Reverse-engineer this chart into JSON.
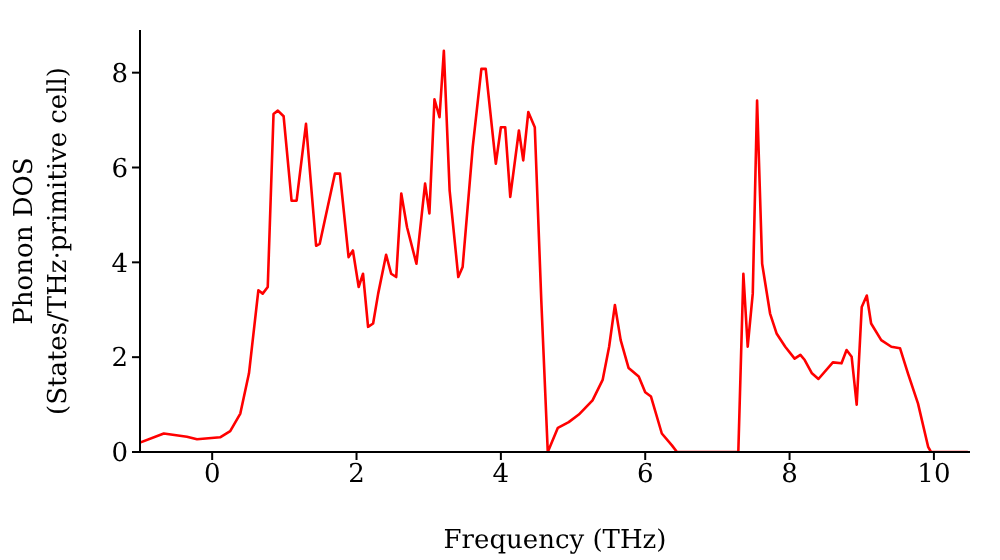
{
  "chart_data": {
    "type": "line",
    "xlabel": "Frequency (THz)",
    "ylabel": "Phonon DOS\n(States/THz·primitive cell)",
    "xlim": [
      -1,
      10.5
    ],
    "ylim": [
      0,
      8.9
    ],
    "xticks": [
      0,
      2,
      4,
      6,
      8,
      10
    ],
    "yticks": [
      0,
      2,
      4,
      6,
      8
    ],
    "grid": false,
    "legend": false,
    "marker": "none",
    "line_style": "solid",
    "series": [
      {
        "color": "#ff0000",
        "x": [
          -1,
          -0.67,
          -0.35,
          -0.21,
          0.11,
          0.25,
          0.39,
          0.51,
          0.64,
          0.7,
          0.77,
          0.85,
          0.91,
          0.99,
          1.1,
          1.17,
          1.3,
          1.44,
          1.49,
          1.7,
          1.77,
          1.89,
          1.95,
          2.03,
          2.09,
          2.16,
          2.23,
          2.3,
          2.41,
          2.48,
          2.55,
          2.62,
          2.7,
          2.83,
          2.95,
          3.01,
          3.08,
          3.15,
          3.21,
          3.29,
          3.41,
          3.47,
          3.61,
          3.73,
          3.79,
          3.93,
          4.0,
          4.06,
          4.13,
          4.25,
          4.31,
          4.38,
          4.47,
          4.56,
          4.65,
          4.79,
          4.94,
          5.08,
          5.27,
          5.41,
          5.5,
          5.58,
          5.66,
          5.77,
          5.91,
          6.0,
          6.08,
          6.23,
          6.37,
          6.44,
          7.29,
          7.36,
          7.42,
          7.49,
          7.55,
          7.62,
          7.73,
          7.82,
          7.94,
          8.07,
          8.15,
          8.21,
          8.31,
          8.4,
          8.6,
          8.72,
          8.79,
          8.86,
          8.93,
          9.0,
          9.07,
          9.13,
          9.27,
          9.41,
          9.53,
          9.64,
          9.78,
          9.92,
          9.96,
          10.47
        ],
        "values": [
          0.2,
          0.39,
          0.32,
          0.27,
          0.31,
          0.44,
          0.81,
          1.66,
          3.41,
          3.34,
          3.48,
          7.13,
          7.2,
          7.08,
          5.3,
          5.3,
          6.92,
          4.35,
          4.39,
          5.87,
          5.87,
          4.11,
          4.25,
          3.48,
          3.76,
          2.64,
          2.71,
          3.34,
          4.16,
          3.76,
          3.69,
          5.45,
          4.74,
          3.97,
          5.66,
          5.03,
          7.44,
          7.06,
          8.46,
          5.52,
          3.69,
          3.9,
          6.43,
          8.08,
          8.08,
          6.08,
          6.85,
          6.85,
          5.38,
          6.78,
          6.15,
          7.17,
          6.85,
          3.2,
          0,
          0.51,
          0.63,
          0.79,
          1.09,
          1.52,
          2.22,
          3.1,
          2.36,
          1.77,
          1.59,
          1.26,
          1.17,
          0.39,
          0.14,
          0,
          0,
          3.76,
          2.22,
          3.34,
          7.41,
          3.97,
          2.92,
          2.5,
          2.22,
          1.97,
          2.05,
          1.94,
          1.66,
          1.54,
          1.89,
          1.87,
          2.15,
          2.01,
          1,
          3.06,
          3.3,
          2.71,
          2.36,
          2.22,
          2.19,
          1.66,
          1.02,
          0.11,
          0,
          0
        ]
      }
    ]
  }
}
